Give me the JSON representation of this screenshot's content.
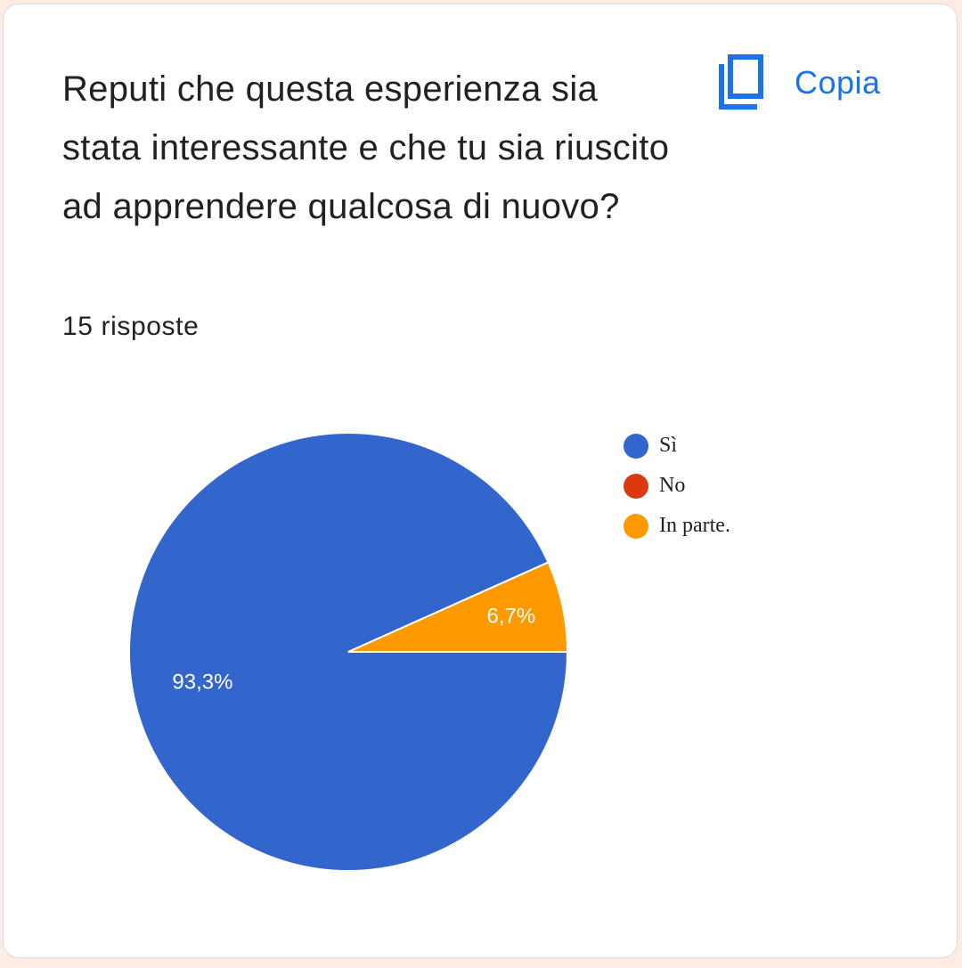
{
  "question": "Reputi che questa esperienza sia stata interessante e che tu sia riuscito ad apprendere qualcosa di nuovo?",
  "copy_button": {
    "label": "Copia",
    "icon": "copy-icon"
  },
  "responses_count": "15 risposte",
  "colors": {
    "accent": "#1a73e8",
    "si": "#3366cc",
    "no": "#dc3912",
    "in_parte": "#ff9900"
  },
  "chart_data": {
    "type": "pie",
    "categories": [
      "Sì",
      "No",
      "In parte."
    ],
    "values": [
      93.3,
      0,
      6.7
    ],
    "slice_labels": [
      "93,3%",
      "",
      "6,7%"
    ],
    "colors": [
      "#3366cc",
      "#dc3912",
      "#ff9900"
    ],
    "legend_position": "right"
  }
}
